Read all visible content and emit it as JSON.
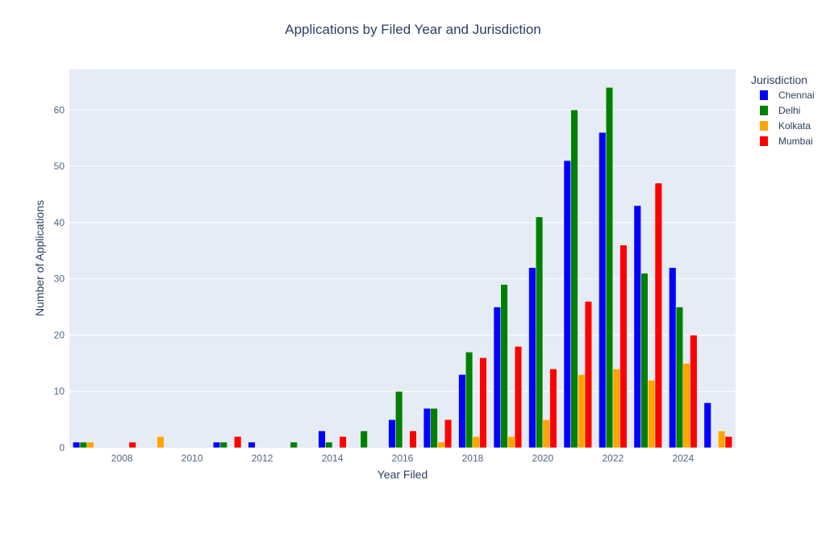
{
  "chart_data": {
    "type": "bar",
    "barmode": "group",
    "title": "Applications by Filed Year and Jurisdiction",
    "xlabel": "Year Filed",
    "ylabel": "Number of Applications",
    "x": [
      2007,
      2008,
      2009,
      2010,
      2011,
      2012,
      2013,
      2014,
      2015,
      2016,
      2017,
      2018,
      2019,
      2020,
      2021,
      2022,
      2023,
      2024,
      2025
    ],
    "xlim": [
      2006.5,
      2025.5
    ],
    "ylim": [
      0,
      67.2
    ],
    "xticks": [
      2008,
      2010,
      2012,
      2014,
      2016,
      2018,
      2020,
      2022,
      2024
    ],
    "yticks": [
      0,
      10,
      20,
      30,
      40,
      50,
      60
    ],
    "grid": true,
    "legend": {
      "title": "Jurisdiction",
      "placement": "top-right outside"
    },
    "series": [
      {
        "name": "Chennai",
        "color": "#0000ff",
        "values": [
          1,
          0,
          0,
          0,
          1,
          1,
          0,
          3,
          0,
          5,
          7,
          13,
          25,
          32,
          51,
          56,
          43,
          32,
          8
        ]
      },
      {
        "name": "Delhi",
        "color": "#008000",
        "values": [
          1,
          0,
          0,
          0,
          1,
          0,
          1,
          1,
          3,
          10,
          7,
          17,
          29,
          41,
          60,
          64,
          31,
          25,
          0
        ]
      },
      {
        "name": "Kolkata",
        "color": "#ffa500",
        "values": [
          1,
          0,
          2,
          0,
          0,
          0,
          0,
          0,
          0,
          0,
          1,
          2,
          2,
          5,
          13,
          14,
          12,
          15,
          3
        ]
      },
      {
        "name": "Mumbai",
        "color": "#ff0000",
        "values": [
          0,
          1,
          0,
          0,
          2,
          0,
          0,
          2,
          0,
          3,
          5,
          16,
          18,
          14,
          26,
          36,
          47,
          20,
          2
        ]
      }
    ]
  }
}
